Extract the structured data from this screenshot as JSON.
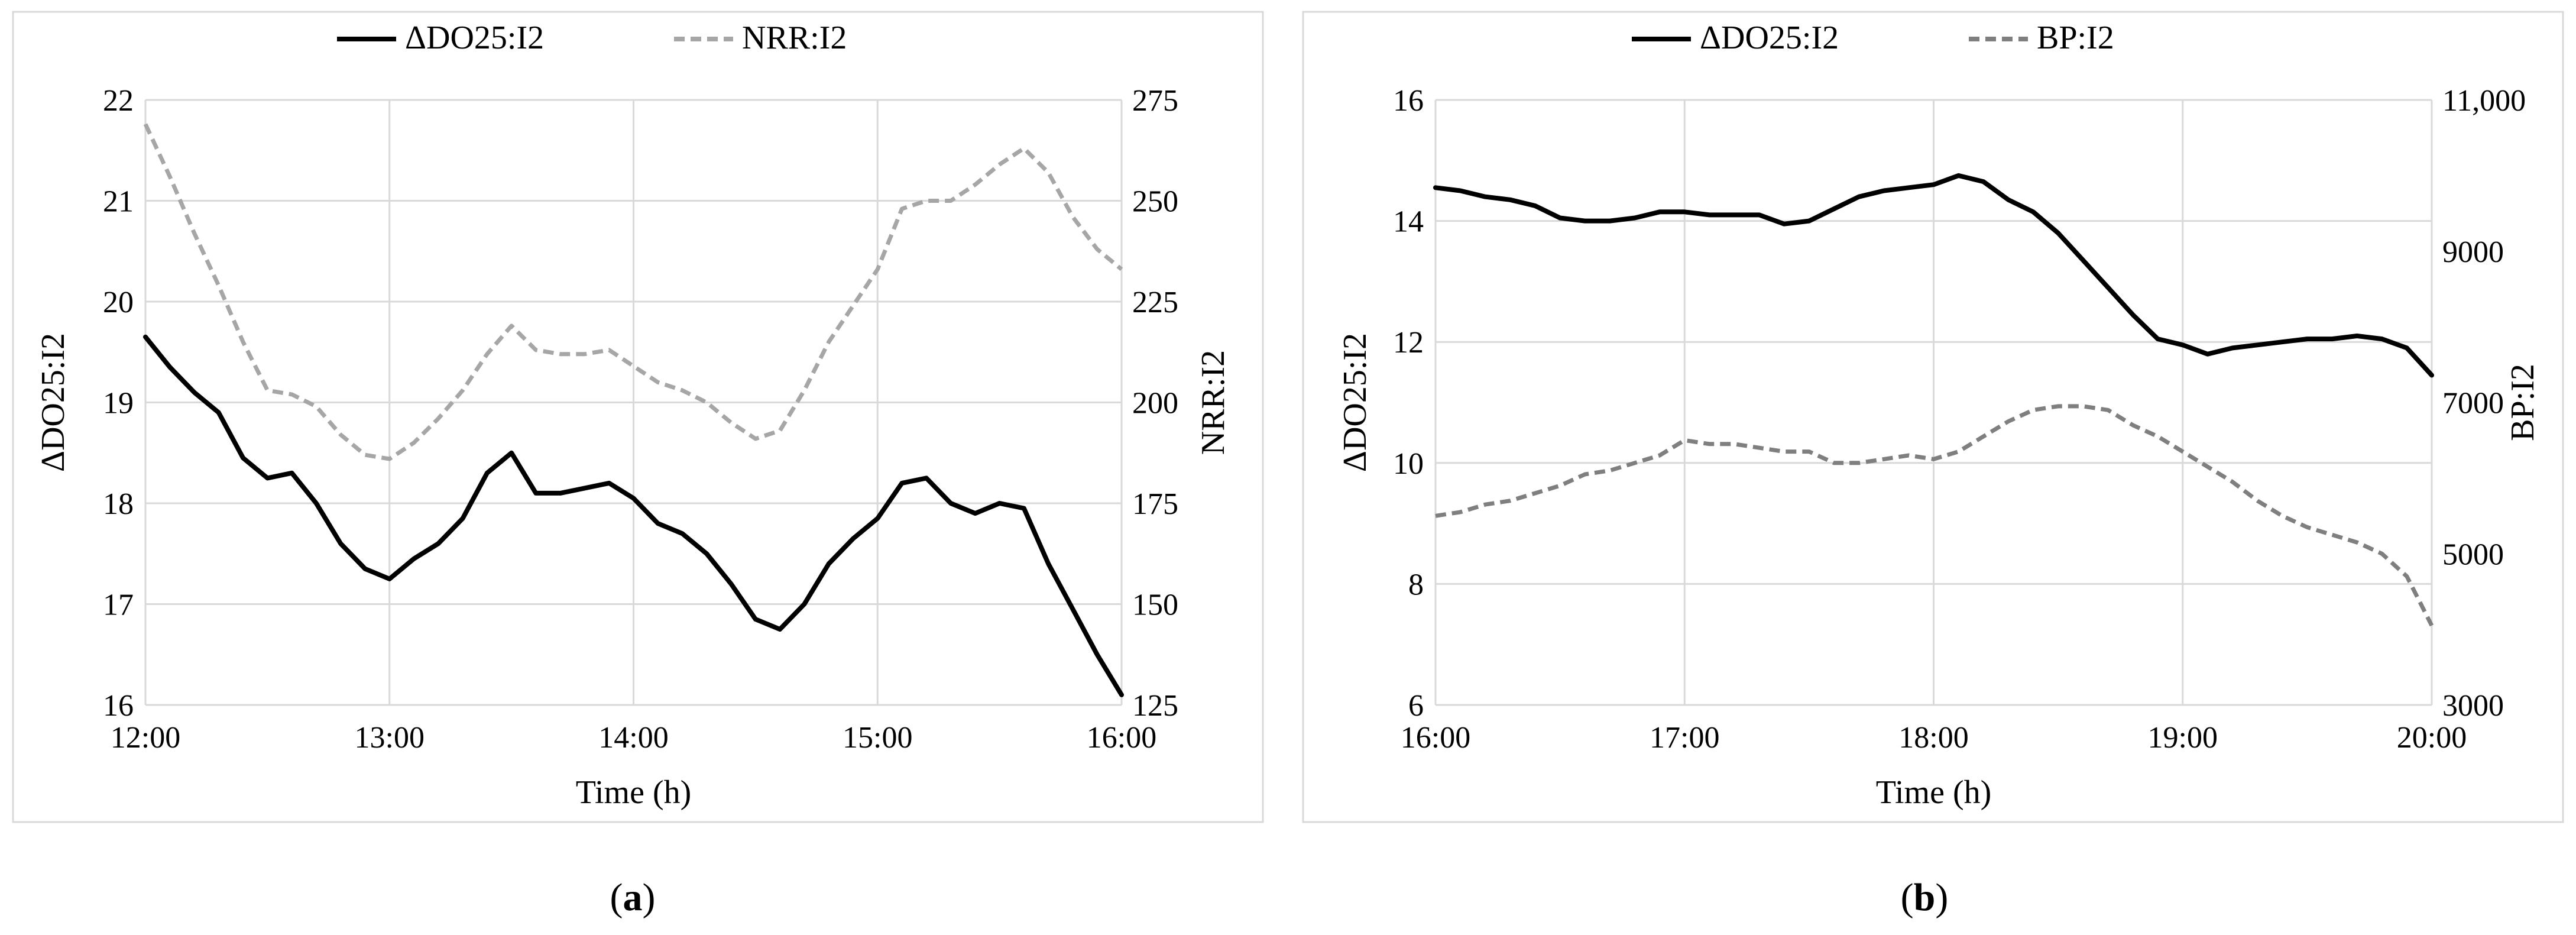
{
  "charts": [
    {
      "id": "a",
      "caption_open": "(",
      "caption_letter": "a",
      "caption_close": ")",
      "xlabel": "Time (h)",
      "ylabel_left": "ΔDO25:I2",
      "ylabel_right": "NRR:I2",
      "xticks": [
        "12:00",
        "13:00",
        "14:00",
        "15:00",
        "16:00"
      ],
      "yticks_left": [
        "16",
        "17",
        "18",
        "19",
        "20",
        "21",
        "22"
      ],
      "yticks_right": [
        "125",
        "150",
        "175",
        "200",
        "225",
        "250",
        "275"
      ],
      "legend": [
        "ΔDO25:I2",
        "NRR:I2"
      ],
      "colors": {
        "primary": "#000000",
        "secondary": "#a6a6a6",
        "grid": "#d9d9d9",
        "border": "#d9d9d9"
      }
    },
    {
      "id": "b",
      "caption_open": "(",
      "caption_letter": "b",
      "caption_close": ")",
      "xlabel": "Time (h)",
      "ylabel_left": "ΔDO25:I2",
      "ylabel_right": "BP:I2",
      "xticks": [
        "16:00",
        "17:00",
        "18:00",
        "19:00",
        "20:00"
      ],
      "yticks_left": [
        "6",
        "8",
        "10",
        "12",
        "14",
        "16"
      ],
      "yticks_right": [
        "3000",
        "5000",
        "7000",
        "9000",
        "11,000"
      ],
      "legend": [
        "ΔDO25:I2",
        "BP:I2"
      ],
      "colors": {
        "primary": "#000000",
        "secondary": "#7f7f7f",
        "grid": "#d9d9d9",
        "border": "#d9d9d9"
      }
    }
  ],
  "chart_data": [
    {
      "type": "line",
      "x_unit": "hours",
      "xlim": [
        12,
        16
      ],
      "ylim_left": [
        16,
        22
      ],
      "ylim_right": [
        125,
        275
      ],
      "grid": true,
      "legend_position": "top",
      "series": [
        {
          "name": "ΔDO25:I2",
          "axis": "left",
          "style": "solid",
          "x": [
            12.0,
            12.1,
            12.2,
            12.3,
            12.4,
            12.5,
            12.6,
            12.7,
            12.8,
            12.9,
            13.0,
            13.1,
            13.2,
            13.3,
            13.4,
            13.5,
            13.6,
            13.7,
            13.8,
            13.9,
            14.0,
            14.1,
            14.2,
            14.3,
            14.4,
            14.5,
            14.6,
            14.7,
            14.8,
            14.9,
            15.0,
            15.1,
            15.2,
            15.3,
            15.4,
            15.5,
            15.6,
            15.7,
            15.8,
            15.9,
            16.0
          ],
          "y": [
            19.65,
            19.35,
            19.1,
            18.9,
            18.45,
            18.25,
            18.3,
            18.0,
            17.6,
            17.35,
            17.25,
            17.45,
            17.6,
            17.85,
            18.3,
            18.5,
            18.1,
            18.1,
            18.15,
            18.2,
            18.05,
            17.8,
            17.7,
            17.5,
            17.2,
            16.85,
            16.75,
            17.0,
            17.4,
            17.65,
            17.85,
            18.2,
            18.25,
            18.0,
            17.9,
            18.0,
            17.95,
            17.4,
            16.95,
            16.5,
            16.1
          ]
        },
        {
          "name": "NRR:I2",
          "axis": "right",
          "style": "dashed",
          "x": [
            12.0,
            12.1,
            12.2,
            12.3,
            12.4,
            12.5,
            12.6,
            12.7,
            12.8,
            12.9,
            13.0,
            13.1,
            13.2,
            13.3,
            13.4,
            13.5,
            13.6,
            13.7,
            13.8,
            13.9,
            14.0,
            14.1,
            14.2,
            14.3,
            14.4,
            14.5,
            14.6,
            14.7,
            14.8,
            14.9,
            15.0,
            15.1,
            15.2,
            15.3,
            15.4,
            15.5,
            15.6,
            15.7,
            15.8,
            15.9,
            16.0
          ],
          "y": [
            269,
            256,
            242,
            229,
            215,
            203,
            202,
            199,
            192,
            187,
            186,
            190,
            196,
            203,
            212,
            219,
            213,
            212,
            212,
            213,
            209,
            205,
            203,
            200,
            195,
            191,
            193,
            203,
            215,
            224,
            233,
            248,
            250,
            250,
            254,
            259,
            263,
            257,
            246,
            238,
            233
          ]
        }
      ]
    },
    {
      "type": "line",
      "x_unit": "hours",
      "xlim": [
        16,
        20
      ],
      "ylim_left": [
        6,
        16
      ],
      "ylim_right": [
        3000,
        11000
      ],
      "grid": true,
      "legend_position": "top",
      "series": [
        {
          "name": "ΔDO25:I2",
          "axis": "left",
          "style": "solid",
          "x": [
            16.0,
            16.1,
            16.2,
            16.3,
            16.4,
            16.5,
            16.6,
            16.7,
            16.8,
            16.9,
            17.0,
            17.1,
            17.2,
            17.3,
            17.4,
            17.5,
            17.6,
            17.7,
            17.8,
            17.9,
            18.0,
            18.1,
            18.2,
            18.3,
            18.4,
            18.5,
            18.6,
            18.7,
            18.8,
            18.9,
            19.0,
            19.1,
            19.2,
            19.3,
            19.4,
            19.5,
            19.6,
            19.7,
            19.8,
            19.9,
            20.0
          ],
          "y": [
            14.55,
            14.5,
            14.4,
            14.35,
            14.25,
            14.05,
            14.0,
            14.0,
            14.05,
            14.15,
            14.15,
            14.1,
            14.1,
            14.1,
            13.95,
            14.0,
            14.2,
            14.4,
            14.5,
            14.55,
            14.6,
            14.75,
            14.65,
            14.35,
            14.15,
            13.8,
            13.35,
            12.9,
            12.45,
            12.05,
            11.95,
            11.8,
            11.9,
            11.95,
            12.0,
            12.05,
            12.05,
            12.1,
            12.05,
            11.9,
            11.45
          ]
        },
        {
          "name": "BP:I2",
          "axis": "right",
          "style": "dashed",
          "x": [
            16.0,
            16.1,
            16.2,
            16.3,
            16.4,
            16.5,
            16.6,
            16.7,
            16.8,
            16.9,
            17.0,
            17.1,
            17.2,
            17.3,
            17.4,
            17.5,
            17.6,
            17.7,
            17.8,
            17.9,
            18.0,
            18.1,
            18.2,
            18.3,
            18.4,
            18.5,
            18.6,
            18.7,
            18.8,
            18.9,
            19.0,
            19.1,
            19.2,
            19.3,
            19.4,
            19.5,
            19.6,
            19.7,
            19.8,
            19.9,
            20.0
          ],
          "y": [
            5500,
            5550,
            5650,
            5700,
            5800,
            5900,
            6050,
            6100,
            6200,
            6300,
            6500,
            6450,
            6450,
            6400,
            6350,
            6350,
            6200,
            6200,
            6250,
            6300,
            6250,
            6350,
            6550,
            6750,
            6900,
            6950,
            6950,
            6900,
            6700,
            6550,
            6350,
            6150,
            5950,
            5700,
            5500,
            5350,
            5250,
            5150,
            5000,
            4700,
            4050
          ]
        }
      ]
    }
  ]
}
